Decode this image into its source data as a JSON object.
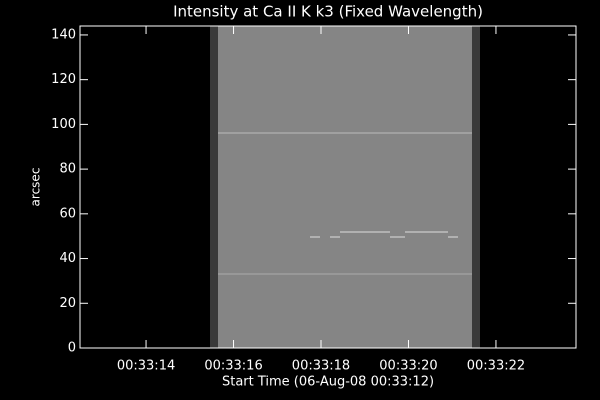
{
  "chart_data": {
    "type": "image",
    "title": "Intensity at Ca II K k3 (Fixed Wavelength)",
    "x_label": "Start Time (06-Aug-08 00:33:12)",
    "y_label": "arcsec",
    "xlim": [
      12.49,
      23.83
    ],
    "xticks": [
      {
        "value": 2,
        "label": "00:33:14"
      },
      {
        "value": 4,
        "label": "00:33:16"
      },
      {
        "value": 6,
        "label": "00:33:18"
      },
      {
        "value": 8,
        "label": "00:33:20"
      },
      {
        "value": 10,
        "label": "00:33:22"
      }
    ],
    "ylim": [
      0,
      144
    ],
    "yticks": [
      0,
      20,
      40,
      60,
      80,
      100,
      120,
      140
    ]
  }
}
